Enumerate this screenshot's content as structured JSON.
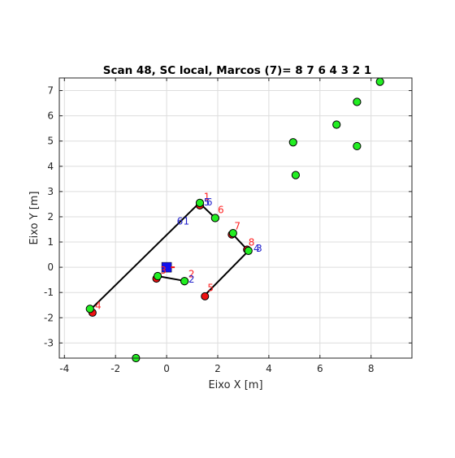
{
  "chart_data": {
    "type": "scatter",
    "title": "Scan 48, SC local, Marcos (7)=  8 7 6 4 3 2 1",
    "xlabel": "Eixo X [m]",
    "ylabel": "Eixo Y [m]",
    "xlim": [
      -4.2,
      9.6
    ],
    "ylim": [
      -3.6,
      7.5
    ],
    "x_ticks": [
      -4,
      -2,
      0,
      2,
      4,
      6,
      8
    ],
    "y_ticks": [
      -3,
      -2,
      -1,
      0,
      1,
      2,
      3,
      4,
      5,
      6,
      7
    ],
    "x_tick_labels": [
      "-4",
      "-2",
      "0",
      "2",
      "4",
      "6",
      "8"
    ],
    "y_tick_labels": [
      "-3",
      "-2",
      "-1",
      "0",
      "1",
      "2",
      "3",
      "4",
      "5",
      "6",
      "7"
    ],
    "grid": true,
    "colors": {
      "landmark_fill": "#22ee22",
      "estimate_fill": "#ee1111",
      "path": "#000000",
      "robot": "#1111ee",
      "red_label": "#ff2222",
      "blue_label": "#2222cc",
      "grid": "#dddddd"
    },
    "robot": {
      "x": 0,
      "y": 0,
      "marker": "square"
    },
    "path_segments": [
      [
        [
          -2.95,
          -1.65
        ],
        [
          1.28,
          2.55
        ]
      ],
      [
        [
          1.28,
          2.55
        ],
        [
          1.9,
          1.95
        ]
      ],
      [
        [
          2.55,
          1.35
        ],
        [
          3.2,
          0.65
        ]
      ],
      [
        [
          3.2,
          0.65
        ],
        [
          1.5,
          -1.1
        ]
      ],
      [
        [
          -0.4,
          -0.45
        ],
        [
          -0.35,
          -0.33
        ]
      ],
      [
        [
          -0.35,
          -0.35
        ],
        [
          0.75,
          -0.55
        ]
      ]
    ],
    "estimated_points": [
      {
        "x": -2.9,
        "y": -1.8
      },
      {
        "x": 1.3,
        "y": 2.45
      },
      {
        "x": 1.9,
        "y": 1.95
      },
      {
        "x": 2.55,
        "y": 1.3
      },
      {
        "x": 3.15,
        "y": 0.7
      },
      {
        "x": 1.5,
        "y": -1.15
      },
      {
        "x": -0.4,
        "y": -0.45
      },
      {
        "x": 0.7,
        "y": -0.55
      }
    ],
    "landmarks": [
      {
        "x": 8.35,
        "y": 7.35
      },
      {
        "x": 7.45,
        "y": 6.55
      },
      {
        "x": 6.65,
        "y": 5.65
      },
      {
        "x": 4.95,
        "y": 4.95
      },
      {
        "x": 7.45,
        "y": 4.8
      },
      {
        "x": 5.05,
        "y": 3.65
      },
      {
        "x": 1.3,
        "y": 2.55
      },
      {
        "x": 1.9,
        "y": 1.95
      },
      {
        "x": 2.6,
        "y": 1.35
      },
      {
        "x": 3.2,
        "y": 0.65
      },
      {
        "x": -0.35,
        "y": -0.35
      },
      {
        "x": 0.7,
        "y": -0.55
      },
      {
        "x": -3.0,
        "y": -1.65
      },
      {
        "x": -1.2,
        "y": -3.6
      }
    ],
    "red_labels": [
      {
        "text": "1",
        "x": 1.45,
        "y": 2.65
      },
      {
        "text": "6",
        "x": 2.0,
        "y": 2.15
      },
      {
        "text": "7",
        "x": 2.65,
        "y": 1.5
      },
      {
        "text": "8",
        "x": 3.2,
        "y": 0.85
      },
      {
        "text": "5",
        "x": 1.6,
        "y": -0.95
      },
      {
        "text": "2",
        "x": 0.85,
        "y": -0.4
      },
      {
        "text": "3",
        "x": -0.25,
        "y": -0.25
      },
      {
        "text": "4",
        "x": -2.8,
        "y": -1.65
      }
    ],
    "blue_labels": [
      {
        "text": "6",
        "x": 0.4,
        "y": 1.7
      },
      {
        "text": "1",
        "x": 0.65,
        "y": 1.7
      },
      {
        "text": "5",
        "x": 1.45,
        "y": 2.45
      },
      {
        "text": "6",
        "x": 1.55,
        "y": 2.45
      },
      {
        "text": "4",
        "x": 3.4,
        "y": 0.62
      },
      {
        "text": "3",
        "x": 3.5,
        "y": 0.62
      },
      {
        "text": "2",
        "x": 0.85,
        "y": -0.6
      }
    ]
  }
}
